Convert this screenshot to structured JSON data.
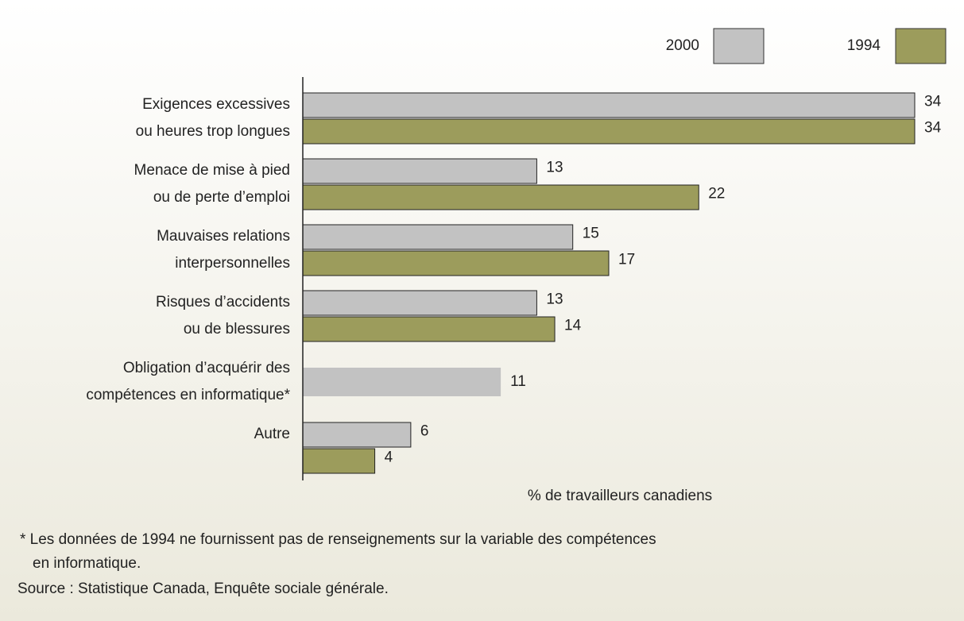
{
  "chart_data": {
    "type": "hbar",
    "categories": [
      "Exigences excessives\nou heures trop longues",
      "Menace de mise à pied\nou de perte d’emploi",
      "Mauvaises relations\ninterpersonnelles",
      "Risques d’accidents\nou de blessures",
      "Obligation d’acquérir des\ncompétences en informatique*",
      "Autre"
    ],
    "series": [
      {
        "name": "2000",
        "color": "#c2c2c2",
        "values": [
          34,
          13,
          15,
          13,
          11,
          6
        ]
      },
      {
        "name": "1994",
        "color": "#9c9c5c",
        "values": [
          34,
          22,
          17,
          14,
          null,
          4
        ]
      }
    ],
    "xlim": [
      0,
      34
    ],
    "xlabel": "% de travailleurs canadiens",
    "footnote": "* Les données de 1994 ne fournissent pas de renseignements sur la variable des compétences\nen informatique.",
    "source": "Source : Statistique Canada, Enquête sociale générale."
  }
}
